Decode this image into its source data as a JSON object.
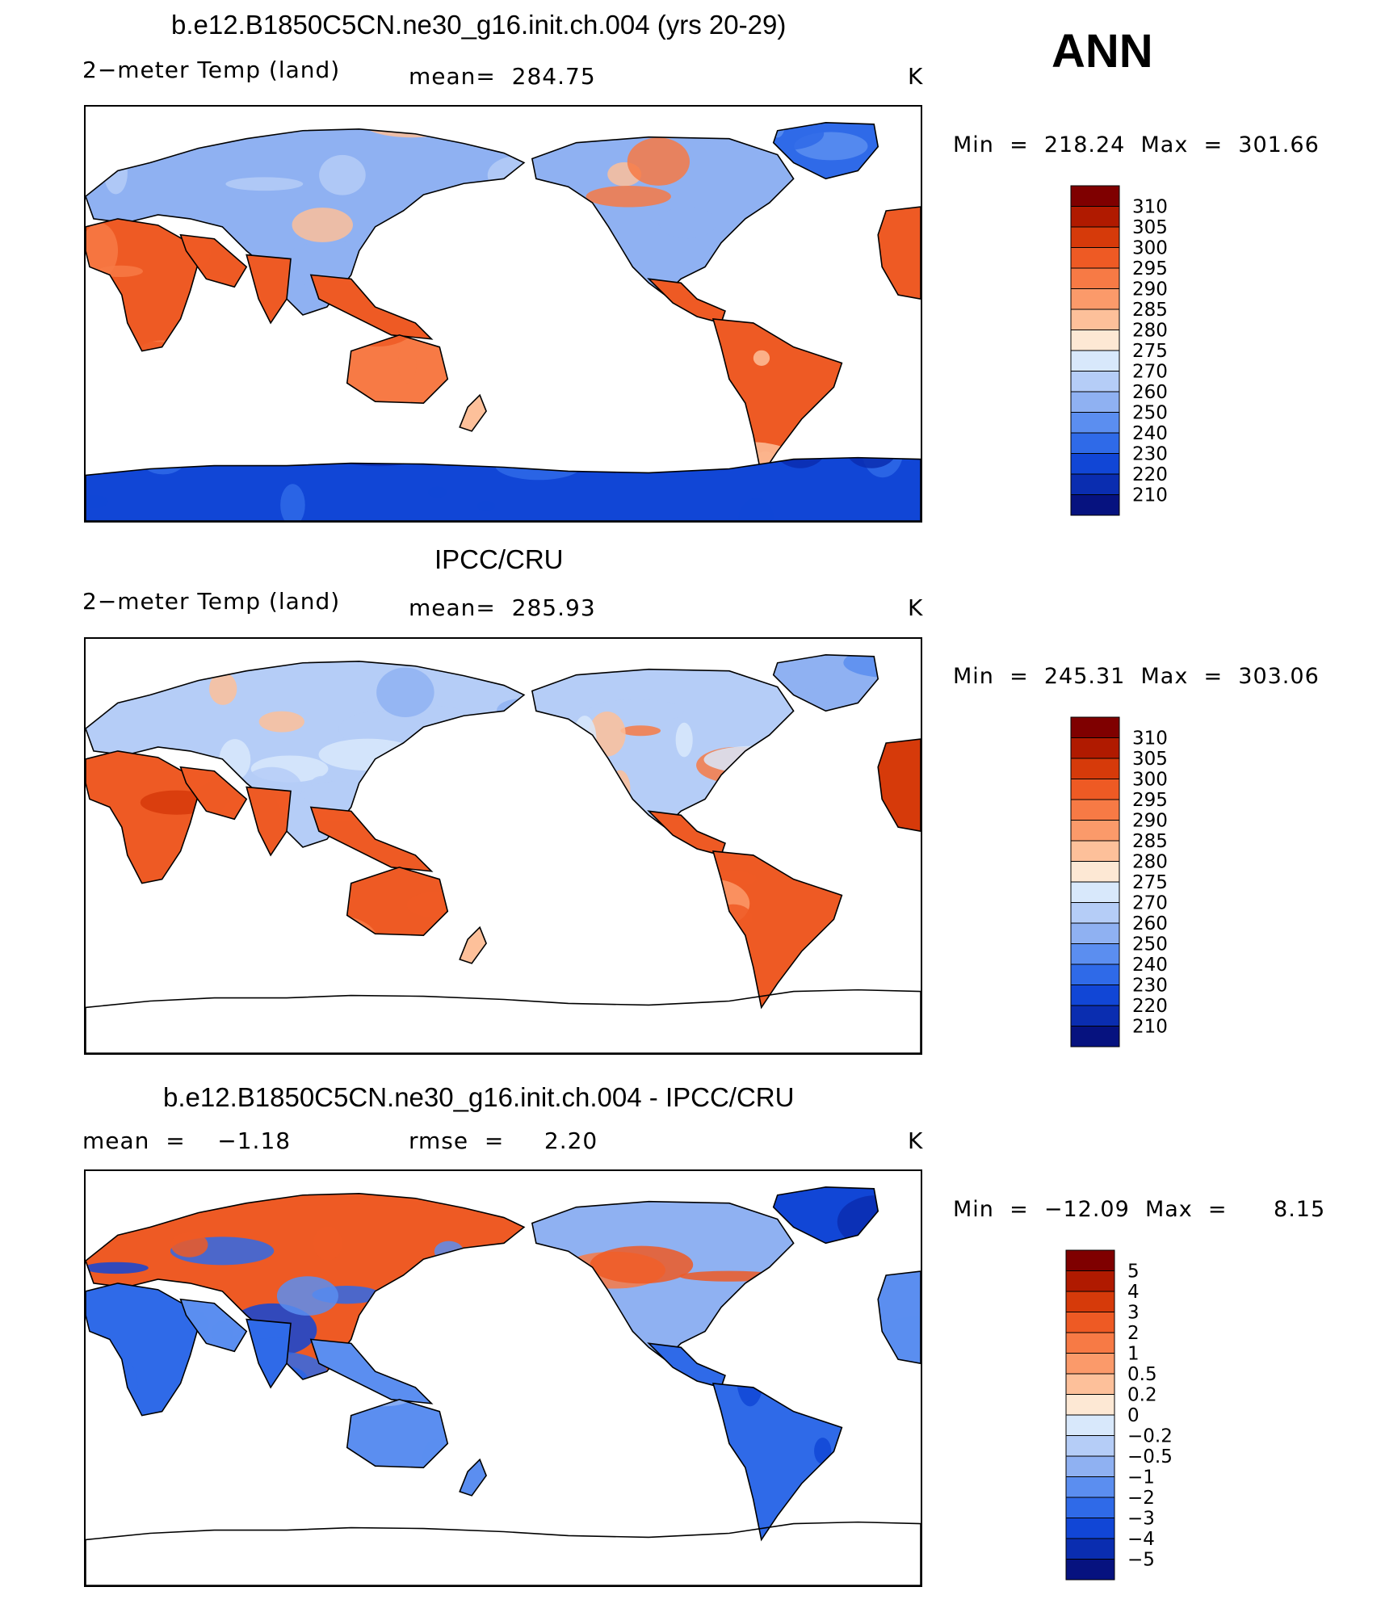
{
  "season": "ANN",
  "panels": [
    {
      "title": "b.e12.B1850C5CN.ne30_g16.init.ch.004 (yrs 20-29)",
      "left_label": "2−meter Temp (land)",
      "stat_label": "mean=  284.75",
      "units": "K",
      "minmax": "Min  =  218.24  Max  =  301.66",
      "scheme": "abs"
    },
    {
      "title": "IPCC/CRU",
      "left_label": "2−meter Temp (land)",
      "stat_label": "mean=  285.93",
      "units": "K",
      "minmax": "Min  =  245.31  Max  =  303.06",
      "scheme": "obs"
    },
    {
      "title": "b.e12.B1850C5CN.ne30_g16.init.ch.004 - IPCC/CRU",
      "left_label": "mean  =    −1.18",
      "stat_label": "rmse  =     2.20",
      "units": "K",
      "minmax": "Min  =  −12.09  Max  =      8.15",
      "scheme": "diff"
    }
  ],
  "colorbars": {
    "abs": {
      "labels": [
        "310",
        "305",
        "300",
        "295",
        "290",
        "285",
        "280",
        "275",
        "270",
        "260",
        "250",
        "240",
        "230",
        "220",
        "210"
      ],
      "colors": [
        "#7f0000",
        "#b01a00",
        "#d63a0a",
        "#ee5a24",
        "#f77a45",
        "#fb9a6a",
        "#fdc09a",
        "#fde8d4",
        "#d8e8fb",
        "#b5cdf7",
        "#8fb1f2",
        "#5b8ef0",
        "#2f6ae8",
        "#1146d6",
        "#0a2db0",
        "#06127f"
      ]
    },
    "diff": {
      "labels": [
        "5",
        "4",
        "3",
        "2",
        "1",
        "0.5",
        "0.2",
        "0",
        "−0.2",
        "−0.5",
        "−1",
        "−2",
        "−3",
        "−4",
        "−5"
      ],
      "colors": [
        "#7f0000",
        "#b01a00",
        "#d63a0a",
        "#ee5a24",
        "#f77a45",
        "#fb9a6a",
        "#fdc09a",
        "#fde8d4",
        "#d8e8fb",
        "#b5cdf7",
        "#8fb1f2",
        "#5b8ef0",
        "#2f6ae8",
        "#1146d6",
        "#0a2db0",
        "#06127f"
      ]
    }
  }
}
